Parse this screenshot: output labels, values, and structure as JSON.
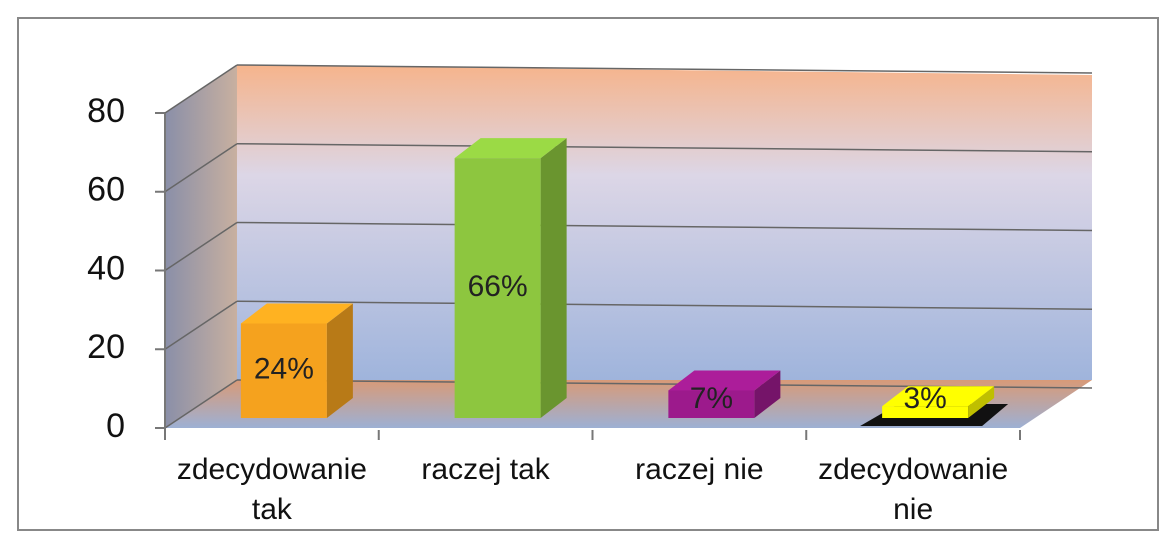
{
  "chart_data": {
    "type": "bar3d",
    "categories": [
      "zdecydowanie tak",
      "raczej tak",
      "raczej nie",
      "zdecydowanie nie"
    ],
    "values": [
      24,
      66,
      7,
      3
    ],
    "value_labels": [
      "24%",
      "66%",
      "7%",
      "3%"
    ],
    "colors": [
      "#f5a21e",
      "#8dc63f",
      "#9c1a8c",
      "#ffff00"
    ],
    "ylim": [
      0,
      80
    ],
    "yticks": [
      0,
      20,
      40,
      60,
      80
    ],
    "grid": true
  }
}
